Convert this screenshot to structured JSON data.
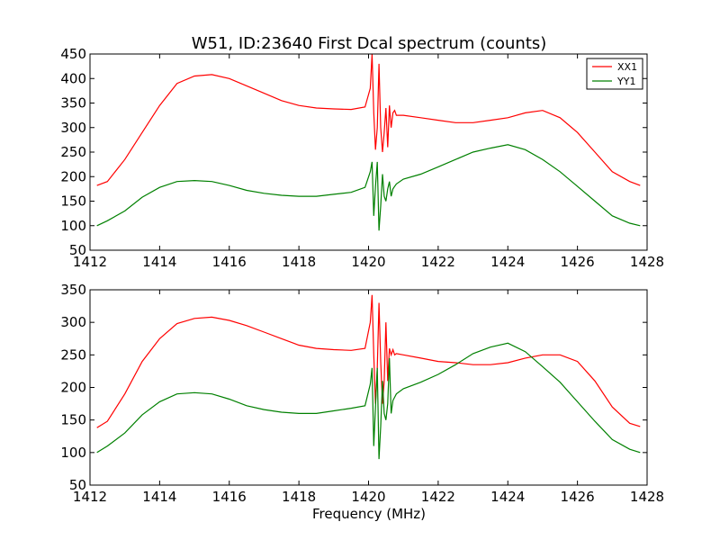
{
  "chart_data": [
    {
      "type": "line",
      "title": "W51, ID:23640 First Dcal spectrum (counts)",
      "xlabel": "",
      "ylabel": "",
      "xlim": [
        1412,
        1428
      ],
      "ylim": [
        50,
        450
      ],
      "xticks": [
        "1412",
        "1414",
        "1416",
        "1418",
        "1420",
        "1422",
        "1424",
        "1426",
        "1428"
      ],
      "yticks": [
        "50",
        "100",
        "150",
        "200",
        "250",
        "300",
        "350",
        "400",
        "450"
      ],
      "legend": "top-right",
      "series": [
        {
          "name": "XX1",
          "color": "#ff0000",
          "x": [
            1412.2,
            1412.5,
            1413.0,
            1413.5,
            1414.0,
            1414.5,
            1415.0,
            1415.5,
            1416.0,
            1416.5,
            1417.0,
            1417.5,
            1418.0,
            1418.5,
            1419.0,
            1419.5,
            1419.9,
            1420.05,
            1420.1,
            1420.15,
            1420.2,
            1420.25,
            1420.3,
            1420.35,
            1420.4,
            1420.45,
            1420.5,
            1420.55,
            1420.6,
            1420.65,
            1420.7,
            1420.75,
            1420.8,
            1421.0,
            1421.5,
            1422.0,
            1422.5,
            1423.0,
            1423.5,
            1424.0,
            1424.5,
            1425.0,
            1425.5,
            1426.0,
            1426.5,
            1427.0,
            1427.5,
            1427.8
          ],
          "y": [
            182,
            190,
            235,
            290,
            345,
            390,
            405,
            408,
            400,
            385,
            370,
            355,
            345,
            340,
            338,
            337,
            342,
            380,
            450,
            330,
            255,
            300,
            430,
            300,
            250,
            290,
            340,
            260,
            345,
            300,
            330,
            335,
            325,
            325,
            320,
            315,
            310,
            310,
            315,
            320,
            330,
            335,
            320,
            290,
            250,
            210,
            190,
            182
          ]
        },
        {
          "name": "YY1",
          "color": "#008000",
          "x": [
            1412.2,
            1412.5,
            1413.0,
            1413.5,
            1414.0,
            1414.5,
            1415.0,
            1415.5,
            1416.0,
            1416.5,
            1417.0,
            1417.5,
            1418.0,
            1418.5,
            1419.0,
            1419.5,
            1419.9,
            1420.05,
            1420.1,
            1420.15,
            1420.2,
            1420.25,
            1420.3,
            1420.35,
            1420.4,
            1420.45,
            1420.5,
            1420.55,
            1420.6,
            1420.65,
            1420.7,
            1420.75,
            1420.8,
            1421.0,
            1421.5,
            1422.0,
            1422.5,
            1423.0,
            1423.5,
            1424.0,
            1424.5,
            1425.0,
            1425.5,
            1426.0,
            1426.5,
            1427.0,
            1427.5,
            1427.8
          ],
          "y": [
            100,
            110,
            130,
            158,
            178,
            190,
            192,
            190,
            182,
            172,
            166,
            162,
            160,
            160,
            164,
            168,
            178,
            210,
            230,
            120,
            180,
            230,
            90,
            140,
            205,
            160,
            150,
            175,
            190,
            160,
            175,
            180,
            185,
            195,
            205,
            220,
            235,
            250,
            258,
            265,
            255,
            235,
            210,
            180,
            150,
            120,
            105,
            100
          ]
        }
      ]
    },
    {
      "type": "line",
      "title": "",
      "xlabel": "Frequency (MHz)",
      "ylabel": "",
      "xlim": [
        1412,
        1428
      ],
      "ylim": [
        50,
        350
      ],
      "xticks": [
        "1412",
        "1414",
        "1416",
        "1418",
        "1420",
        "1422",
        "1424",
        "1426",
        "1428"
      ],
      "yticks": [
        "50",
        "100",
        "150",
        "200",
        "250",
        "300",
        "350"
      ],
      "series": [
        {
          "color": "#ff0000",
          "x": [
            1412.2,
            1412.5,
            1413.0,
            1413.5,
            1414.0,
            1414.5,
            1415.0,
            1415.5,
            1416.0,
            1416.5,
            1417.0,
            1417.5,
            1418.0,
            1418.5,
            1419.0,
            1419.5,
            1419.9,
            1420.05,
            1420.1,
            1420.15,
            1420.2,
            1420.25,
            1420.3,
            1420.35,
            1420.4,
            1420.45,
            1420.5,
            1420.55,
            1420.6,
            1420.65,
            1420.7,
            1420.75,
            1420.8,
            1421.0,
            1421.5,
            1422.0,
            1422.5,
            1423.0,
            1423.5,
            1424.0,
            1424.5,
            1425.0,
            1425.5,
            1426.0,
            1426.5,
            1427.0,
            1427.5,
            1427.8
          ],
          "y": [
            138,
            148,
            190,
            240,
            275,
            298,
            306,
            308,
            303,
            295,
            285,
            275,
            265,
            260,
            258,
            257,
            260,
            300,
            342,
            250,
            175,
            230,
            330,
            240,
            175,
            210,
            300,
            210,
            260,
            250,
            258,
            250,
            252,
            250,
            245,
            240,
            238,
            235,
            235,
            238,
            245,
            250,
            250,
            240,
            210,
            170,
            145,
            140
          ]
        },
        {
          "color": "#008000",
          "x": [
            1412.2,
            1412.5,
            1413.0,
            1413.5,
            1414.0,
            1414.5,
            1415.0,
            1415.5,
            1416.0,
            1416.5,
            1417.0,
            1417.5,
            1418.0,
            1418.5,
            1419.0,
            1419.5,
            1419.9,
            1420.05,
            1420.1,
            1420.15,
            1420.2,
            1420.25,
            1420.3,
            1420.35,
            1420.4,
            1420.45,
            1420.5,
            1420.55,
            1420.6,
            1420.65,
            1420.7,
            1420.75,
            1420.8,
            1421.0,
            1421.5,
            1422.0,
            1422.5,
            1423.0,
            1423.5,
            1424.0,
            1424.5,
            1425.0,
            1425.5,
            1426.0,
            1426.5,
            1427.0,
            1427.5,
            1427.8
          ],
          "y": [
            100,
            110,
            130,
            158,
            178,
            190,
            192,
            190,
            182,
            172,
            166,
            162,
            160,
            160,
            164,
            168,
            172,
            205,
            230,
            110,
            170,
            230,
            90,
            140,
            210,
            160,
            150,
            175,
            245,
            160,
            180,
            185,
            190,
            198,
            208,
            220,
            235,
            252,
            262,
            268,
            255,
            232,
            208,
            178,
            148,
            120,
            105,
            100
          ]
        }
      ]
    }
  ]
}
